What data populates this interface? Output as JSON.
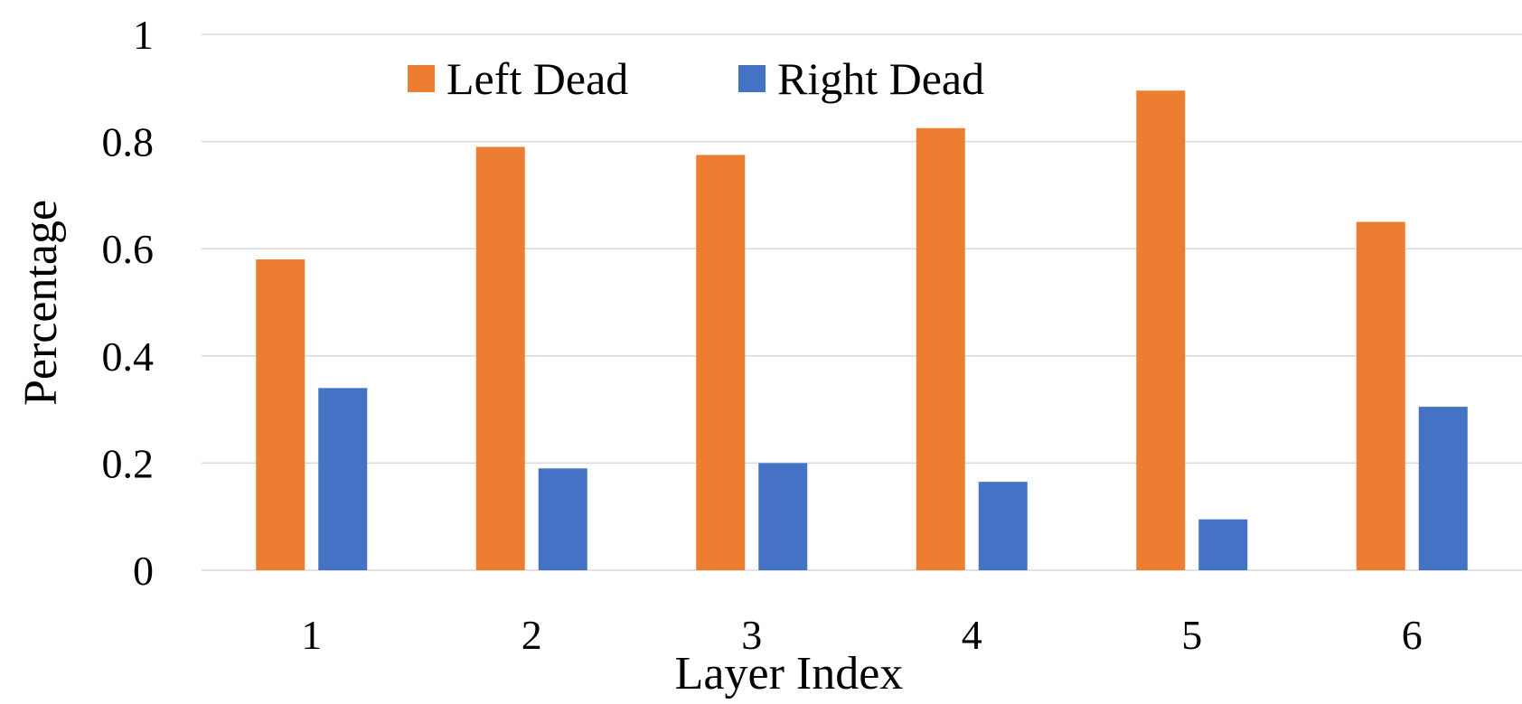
{
  "chart_data": {
    "type": "bar",
    "categories": [
      "1",
      "2",
      "3",
      "4",
      "5",
      "6"
    ],
    "series": [
      {
        "name": "Left Dead",
        "color": "#ED7D31",
        "values": [
          0.58,
          0.79,
          0.775,
          0.825,
          0.895,
          0.65
        ]
      },
      {
        "name": "Right Dead",
        "color": "#4472C4",
        "values": [
          0.34,
          0.19,
          0.2,
          0.165,
          0.095,
          0.305
        ]
      }
    ],
    "title": "",
    "xlabel": "Layer Index",
    "ylabel": "Percentage",
    "ylim": [
      0,
      1
    ],
    "yticks": [
      "0",
      "0.2",
      "0.4",
      "0.6",
      "0.8",
      "1"
    ],
    "grid": true,
    "legend_position": "top"
  }
}
